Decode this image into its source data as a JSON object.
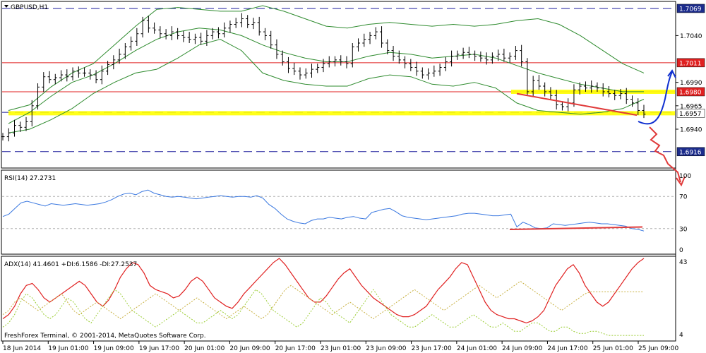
{
  "app": {
    "symbol_title": "GBPUSD,H1",
    "copyright": "FreshForex Terminal, © 2001-2014, MetaQuotes Software Corp."
  },
  "colors": {
    "background": "#ffffff",
    "frame": "#000000",
    "bollinger": "#2e8b2e",
    "candle": "#000000",
    "support_band": "#ffff00",
    "red_level": "#e02020",
    "dashed_level": "#1a1a9c",
    "rsi_line": "#3a78e0",
    "adx_line": "#e02020",
    "di_plus": "#9acd32",
    "di_minus": "#c8b040",
    "trend_red": "#e03a3a",
    "blue_arrow": "#1030d0",
    "label_bg": "#1c2c8c"
  },
  "chart_data": [
    {
      "type": "candlestick",
      "title": "GBPUSD,H1",
      "ylim": [
        1.69,
        1.7075
      ],
      "price_axis_labels": [
        "1.7069",
        "1.7040",
        "1.7011",
        "1.6990",
        "1.6980",
        "1.6965",
        "1.6957",
        "1.6940",
        "1.6916"
      ],
      "highlighted_labels": [
        "1.7069",
        "1.7011",
        "1.6980",
        "1.6957",
        "1.6916"
      ],
      "time_labels": [
        "18 Jun 2014",
        "19 Jun 01:00",
        "19 Jun 09:00",
        "19 Jun 17:00",
        "20 Jun 01:00",
        "20 Jun 09:00",
        "20 Jun 17:00",
        "23 Jun 01:00",
        "23 Jun 09:00",
        "23 Jun 17:00",
        "24 Jun 01:00",
        "24 Jun 09:00",
        "24 Jun 17:00",
        "25 Jun 01:00",
        "25 Jun 09:00"
      ],
      "levels": {
        "red": [
          1.7011,
          1.698
        ],
        "dashed": [
          1.7069,
          1.6958,
          1.6916
        ],
        "yellow_band": [
          1.6957,
          1.698
        ]
      },
      "close_path": [
        1.6932,
        1.6936,
        1.6944,
        1.6942,
        1.6948,
        1.6965,
        1.6985,
        1.6996,
        1.6993,
        1.6995,
        1.6998,
        1.6996,
        1.7002,
        1.7,
        1.7,
        1.6998,
        1.6993,
        1.7002,
        1.7009,
        1.7014,
        1.702,
        1.7028,
        1.7034,
        1.7042,
        1.7056,
        1.7048,
        1.7046,
        1.7042,
        1.704,
        1.7044,
        1.704,
        1.7038,
        1.7036,
        1.7038,
        1.7034,
        1.704,
        1.7044,
        1.7042,
        1.7048,
        1.7052,
        1.7054,
        1.7058,
        1.7052,
        1.7054,
        1.7044,
        1.704,
        1.703,
        1.702,
        1.7012,
        1.7005,
        1.7002,
        1.6998,
        1.7,
        1.7004,
        1.7006,
        1.701,
        1.7012,
        1.7014,
        1.7012,
        1.701,
        1.7028,
        1.7032,
        1.7036,
        1.704,
        1.7044,
        1.7032,
        1.7024,
        1.7018,
        1.7014,
        1.701,
        1.7006,
        1.7002,
        1.6998,
        1.7,
        1.7002,
        1.7006,
        1.7012,
        1.7018,
        1.702,
        1.7022,
        1.702,
        1.7018,
        1.7016,
        1.7014,
        1.7018,
        1.702,
        1.7016,
        1.7018,
        1.7024,
        1.7012,
        1.698,
        1.6992,
        1.6986,
        1.698,
        1.6976,
        1.6966,
        1.6964,
        1.6968,
        1.6982,
        1.6986,
        1.6984,
        1.6986,
        1.6984,
        1.698,
        1.6978,
        1.6976,
        1.6978,
        1.6972,
        1.6968,
        1.696,
        1.6956
      ],
      "bollinger": {
        "upper": [
          1.696,
          1.6966,
          1.6985,
          1.7,
          1.701,
          1.703,
          1.705,
          1.7068,
          1.707,
          1.7068,
          1.7066,
          1.7066,
          1.7072,
          1.7066,
          1.7058,
          1.705,
          1.7048,
          1.7052,
          1.7054,
          1.7052,
          1.705,
          1.7052,
          1.705,
          1.7052,
          1.7056,
          1.7058,
          1.7052,
          1.704,
          1.7025,
          1.701,
          1.7
        ],
        "middle": [
          1.6946,
          1.6958,
          1.6975,
          1.699,
          1.6998,
          1.701,
          1.7024,
          1.7036,
          1.7044,
          1.7048,
          1.7046,
          1.704,
          1.703,
          1.7022,
          1.7016,
          1.7012,
          1.7012,
          1.7018,
          1.7022,
          1.702,
          1.7016,
          1.7018,
          1.702,
          1.7016,
          1.7008,
          1.7,
          1.6994,
          1.6988,
          1.6984,
          1.698,
          1.698
        ],
        "lower": [
          1.6936,
          1.694,
          1.695,
          1.6962,
          1.6978,
          1.699,
          1.7,
          1.7004,
          1.7016,
          1.703,
          1.7036,
          1.7024,
          1.7,
          1.6992,
          1.6988,
          1.6986,
          1.6986,
          1.6994,
          1.6998,
          1.6996,
          1.6988,
          1.6986,
          1.699,
          1.6984,
          1.6968,
          1.696,
          1.6958,
          1.6956,
          1.6958,
          1.6962,
          1.6972
        ]
      }
    },
    {
      "type": "line",
      "title": "RSI(14) 27.2731",
      "ylim": [
        0,
        100
      ],
      "axis_labels": [
        "100",
        "70",
        "30",
        "0"
      ],
      "levels": [
        70,
        30
      ],
      "values": [
        45,
        48,
        55,
        62,
        64,
        62,
        60,
        58,
        61,
        60,
        59,
        60,
        61,
        60,
        59,
        60,
        61,
        63,
        66,
        70,
        73,
        74,
        72,
        76,
        78,
        74,
        72,
        70,
        69,
        70,
        69,
        68,
        67,
        68,
        69,
        70,
        71,
        70,
        69,
        70,
        70,
        69,
        71,
        68,
        60,
        55,
        48,
        42,
        39,
        37,
        36,
        40,
        42,
        42,
        44,
        43,
        42,
        44,
        45,
        43,
        42,
        50,
        52,
        54,
        55,
        51,
        46,
        44,
        43,
        42,
        41,
        42,
        43,
        44,
        45,
        46,
        48,
        49,
        49,
        48,
        47,
        46,
        46,
        47,
        48,
        32,
        38,
        35,
        31,
        30,
        31,
        36,
        35,
        34,
        35,
        36,
        37,
        38,
        37,
        36,
        36,
        35,
        34,
        33,
        30,
        29,
        27
      ]
    },
    {
      "type": "line",
      "title": "ADX(14) 41.4601 +DI:6.1586 -DI:27.2537",
      "ylim": [
        4,
        43
      ],
      "axis_labels": [
        "43",
        "4"
      ],
      "series": [
        {
          "name": "ADX(14)",
          "values": [
            14,
            16,
            20,
            26,
            30,
            31,
            28,
            24,
            22,
            24,
            26,
            28,
            30,
            32,
            30,
            26,
            22,
            20,
            23,
            28,
            34,
            38,
            41,
            40,
            36,
            30,
            28,
            27,
            26,
            24,
            25,
            28,
            32,
            34,
            32,
            28,
            24,
            22,
            20,
            19,
            22,
            26,
            29,
            32,
            35,
            38,
            41,
            43,
            40,
            36,
            32,
            28,
            24,
            22,
            22,
            25,
            29,
            33,
            36,
            38,
            34,
            30,
            27,
            24,
            22,
            20,
            18,
            16,
            15,
            15,
            16,
            18,
            20,
            24,
            28,
            31,
            34,
            38,
            41,
            40,
            34,
            28,
            22,
            18,
            16,
            15,
            14,
            14,
            13,
            12,
            13,
            15,
            18,
            24,
            30,
            34,
            38,
            40,
            36,
            30,
            26,
            22,
            20,
            22,
            26,
            30,
            34,
            38,
            41,
            43
          ]
        },
        {
          "name": "+DI",
          "values": [
            10,
            12,
            16,
            22,
            26,
            24,
            20,
            16,
            14,
            16,
            20,
            24,
            22,
            18,
            14,
            12,
            16,
            20,
            24,
            28,
            26,
            22,
            18,
            16,
            14,
            12,
            10,
            12,
            14,
            16,
            18,
            16,
            14,
            12,
            12,
            14,
            16,
            18,
            16,
            14,
            16,
            20,
            24,
            28,
            26,
            22,
            18,
            16,
            14,
            12,
            10,
            12,
            16,
            20,
            24,
            22,
            18,
            16,
            14,
            12,
            16,
            20,
            24,
            28,
            24,
            20,
            16,
            14,
            12,
            10,
            10,
            12,
            14,
            16,
            14,
            12,
            10,
            10,
            12,
            14,
            16,
            14,
            12,
            10,
            10,
            12,
            10,
            8,
            8,
            10,
            12,
            12,
            10,
            8,
            8,
            10,
            10,
            8,
            7,
            7,
            8,
            8,
            7,
            6,
            6,
            6,
            6,
            6,
            6,
            6
          ]
        },
        {
          "name": "-DI",
          "values": [
            16,
            18,
            22,
            24,
            22,
            20,
            18,
            20,
            22,
            24,
            26,
            22,
            18,
            16,
            18,
            20,
            22,
            20,
            18,
            16,
            14,
            16,
            18,
            20,
            22,
            24,
            26,
            24,
            22,
            20,
            18,
            20,
            22,
            24,
            22,
            20,
            18,
            16,
            14,
            16,
            18,
            20,
            18,
            16,
            14,
            16,
            20,
            24,
            28,
            30,
            28,
            26,
            24,
            22,
            20,
            18,
            16,
            18,
            20,
            22,
            20,
            18,
            16,
            14,
            16,
            18,
            20,
            22,
            24,
            26,
            28,
            26,
            24,
            22,
            20,
            18,
            20,
            22,
            24,
            26,
            28,
            30,
            28,
            26,
            24,
            26,
            28,
            30,
            32,
            30,
            28,
            26,
            24,
            22,
            20,
            18,
            20,
            22,
            24,
            26,
            27,
            27,
            27,
            27,
            27,
            27,
            27,
            27,
            27,
            27
          ]
        }
      ]
    }
  ]
}
